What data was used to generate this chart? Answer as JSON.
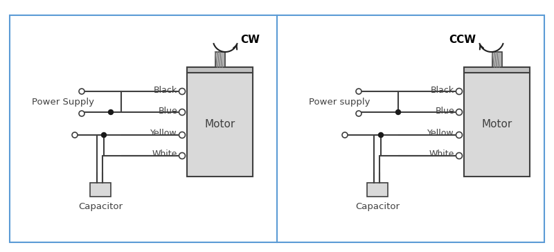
{
  "bg_color": "#ffffff",
  "border_color": "#5b9bd5",
  "border_lw": 1.5,
  "motor_fill": "#d9d9d9",
  "motor_edge": "#404040",
  "cap_fill": "#d9d9d9",
  "cap_edge": "#404040",
  "wire_color": "#404040",
  "wire_lw": 1.5,
  "text_color": "#404040",
  "cw_color": "#000000",
  "ccw_color": "#000000",
  "label_black": "Black",
  "label_blue": "Blue",
  "label_yellow": "Yellow",
  "label_white": "White",
  "label_motor": "Motor",
  "label_capacitor": "Capacitor",
  "label_ps_left": "Power Supply",
  "label_ps_right": "Power supply",
  "label_cw": "CW",
  "label_ccw": "CCW"
}
